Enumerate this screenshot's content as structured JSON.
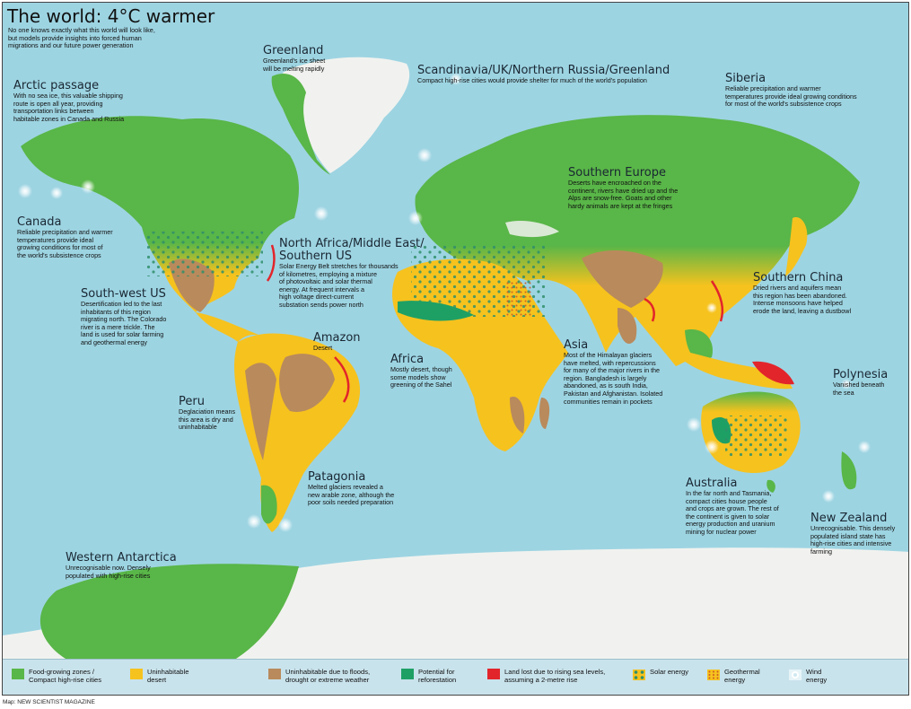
{
  "title": "The world: 4°C warmer",
  "intro": "No one knows exactly what this world will look like,\nbut models provide insights into forced human\nmigrations and our future power generation",
  "regions": {
    "greenland": {
      "title": "Greenland",
      "text": "Greenland's ice sheet\nwill be melting rapidly"
    },
    "scandinavia": {
      "title": "Scandinavia/UK/Northern Russia/Greenland",
      "text": "Compact high-rise cities would provide shelter for much of the world's population"
    },
    "siberia": {
      "title": "Siberia",
      "text": "Reliable precipitation and warmer\ntemperatures provide ideal growing conditions\nfor most of the world's subsistence crops"
    },
    "arctic": {
      "title": "Arctic passage",
      "text": "With no sea ice, this valuable shipping\nroute is open all year, providing\ntransportation links between\nhabitable zones in Canada and Russia"
    },
    "southern_europe": {
      "title": "Southern Europe",
      "text": "Deserts have encroached on the\ncontinent, rivers have dried up and the\nAlps are snow-free. Goats and other\nhardy animals are kept at the fringes"
    },
    "canada": {
      "title": "Canada",
      "text": "Reliable precipitation and warmer\ntemperatures provide ideal\ngrowing conditions for most of\nthe world's subsistence crops"
    },
    "north_africa": {
      "title": "North Africa/Middle East/\nSouthern US",
      "text": "Solar Energy Belt stretches for thousands\nof kilometres, employing a mixture\nof photovoltaic and solar thermal\nenergy. At frequent intervals a\nhigh voltage direct-current\nsubstation sends power north"
    },
    "southern_china": {
      "title": "Southern China",
      "text": "Dried rivers and aquifers mean\nthis region has been abandoned.\nIntense monsoons have helped\nerode the land, leaving a dustbowl"
    },
    "southwest_us": {
      "title": "South-west US",
      "text": "Desertification led to the last\ninhabitants of this region\nmigrating north. The Colorado\nriver is a mere trickle. The\nland is used for solar farming\nand geothermal energy"
    },
    "amazon": {
      "title": "Amazon",
      "text": "Desert"
    },
    "asia": {
      "title": "Asia",
      "text": "Most of the Himalayan glaciers\nhave melted, with repercussions\nfor many of the major rivers in the\nregion. Bangladesh is largely\nabandoned, as is south India,\nPakistan and Afghanistan. Isolated\ncommunities remain in pockets"
    },
    "africa": {
      "title": "Africa",
      "text": "Mostly desert, though\nsome models show\ngreening of the Sahel"
    },
    "polynesia": {
      "title": "Polynesia",
      "text": "Vanished beneath\nthe sea"
    },
    "peru": {
      "title": "Peru",
      "text": "Deglaciation means\nthis area is dry and\nuninhabitable"
    },
    "patagonia": {
      "title": "Patagonia",
      "text": "Melted glaciers revealed a\nnew arable zone, although the\npoor soils needed preparation"
    },
    "australia": {
      "title": "Australia",
      "text": "In the far north and Tasmania,\ncompact cities house people\nand crops are grown. The rest of\nthe continent is given to solar\nenergy production and uranium\nmining for nuclear power"
    },
    "new_zealand": {
      "title": "New Zealand",
      "text": "Unrecognisable. This densely\npopulated island state has\nhigh-rise cities and intensive\nfarming"
    },
    "western_antarctica": {
      "title": "Western Antarctica",
      "text": "Unrecognisable now. Densely\npopulated with high-rise cities"
    }
  },
  "legend": {
    "food": {
      "label": "Food-growing zones /\nCompact high-rise cities",
      "color": "#59b648"
    },
    "desert": {
      "label": "Uninhabitable\ndesert",
      "color": "#f6c21e"
    },
    "floods": {
      "label": "Uninhabitable due to floods,\ndrought or extreme weather",
      "color": "#b98a5c"
    },
    "reforestation": {
      "label": "Potential for\nreforestation",
      "color": "#1ea065"
    },
    "land_lost": {
      "label": "Land lost due to rising sea levels,\nassuming a 2-metre rise",
      "color": "#e2252b"
    },
    "solar": {
      "label": "Solar energy",
      "icon": "solar-dots-icon"
    },
    "geothermal": {
      "label": "Geothermal\nenergy",
      "icon": "geothermal-dots-icon"
    },
    "wind": {
      "label": "Wind\nenergy",
      "icon": "wind-glow-icon"
    }
  },
  "credit": "Map: NEW SCIENTIST MAGAZINE",
  "colors": {
    "ocean": "#9dd4e2",
    "ice": "#f1f2ef",
    "green": "#59b648",
    "yellow": "#f6c21e",
    "brown": "#b98a5c",
    "dark_green": "#1ea065",
    "red": "#e2252b"
  }
}
